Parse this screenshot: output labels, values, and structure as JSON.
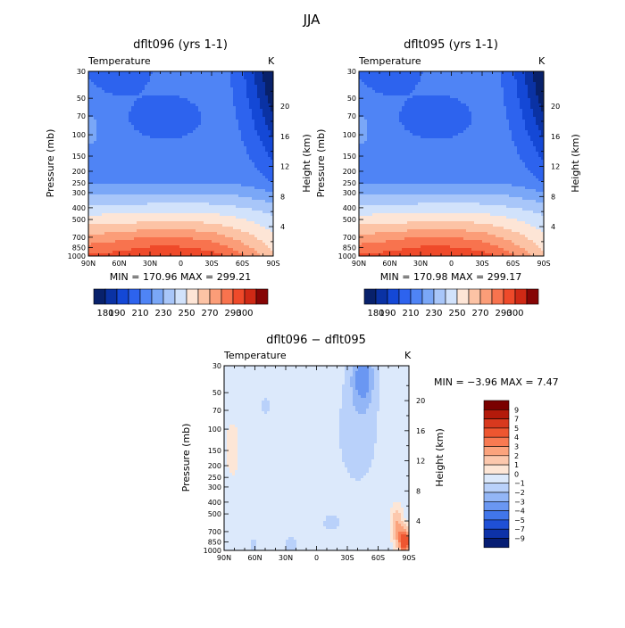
{
  "figure_title": "JJA",
  "levels_main": [
    180,
    190,
    200,
    210,
    220,
    230,
    240,
    250,
    260,
    270,
    280,
    290,
    300
  ],
  "levels_main_labels": [
    "180",
    "190",
    "210",
    "230",
    "250",
    "270",
    "290",
    "300"
  ],
  "colors_main": [
    "#08216b",
    "#0a32a4",
    "#1448d6",
    "#2d63ee",
    "#4f84f5",
    "#7aa7f7",
    "#a8c6f9",
    "#d1e2fb",
    "#fde5d6",
    "#fcc3a5",
    "#fb9d78",
    "#f8734e",
    "#ef4a2a",
    "#cf2915",
    "#860505"
  ],
  "levels_diff_labels": [
    "9",
    "7",
    "5",
    "4",
    "3",
    "2",
    "1",
    "0",
    "−1",
    "−2",
    "−3",
    "−4",
    "−5",
    "−7",
    "−9"
  ],
  "colors_diff": [
    "#7a0000",
    "#b31a0b",
    "#d8391e",
    "#ee5630",
    "#f87a52",
    "#fba37d",
    "#fcc8ad",
    "#fde6d6",
    "#dce9fb",
    "#b9d1fa",
    "#93b6f6",
    "#6a97f2",
    "#4176ea",
    "#1f50d6",
    "#0d32a8",
    "#061d73"
  ],
  "chart_data": [
    {
      "type": "heatmap",
      "title": "dflt096 (yrs 1-1)",
      "left_label": "Temperature",
      "units": "K",
      "ylabel": "Pressure (mb)",
      "y2label": "Height (km)",
      "x_tick_labels": [
        "90N",
        "60N",
        "30N",
        "0",
        "30S",
        "60S",
        "90S"
      ],
      "p_tick_labels": [
        "30",
        "50",
        "70",
        "100",
        "150",
        "200",
        "250",
        "300",
        "400",
        "500",
        "700",
        "850",
        "1000"
      ],
      "z_tick_labels": [
        "20",
        "16",
        "12",
        "8",
        "4"
      ],
      "min_max_text": "MIN = 170.96   MAX = 299.21",
      "min": 170.96,
      "max": 299.21
    },
    {
      "type": "heatmap",
      "title": "dflt095 (yrs 1-1)",
      "left_label": "Temperature",
      "units": "K",
      "ylabel": "Pressure (mb)",
      "y2label": "Height (km)",
      "x_tick_labels": [
        "90N",
        "60N",
        "30N",
        "0",
        "30S",
        "60S",
        "90S"
      ],
      "p_tick_labels": [
        "30",
        "50",
        "70",
        "100",
        "150",
        "200",
        "250",
        "300",
        "400",
        "500",
        "700",
        "850",
        "1000"
      ],
      "z_tick_labels": [
        "20",
        "16",
        "12",
        "8",
        "4"
      ],
      "min_max_text": "MIN = 170.98   MAX = 299.17",
      "min": 170.98,
      "max": 299.17
    },
    {
      "type": "heatmap",
      "title": "dflt096 − dflt095",
      "left_label": "Temperature",
      "units": "K",
      "ylabel": "Pressure (mb)",
      "y2label": "Height (km)",
      "x_tick_labels": [
        "90N",
        "60N",
        "30N",
        "0",
        "30S",
        "60S",
        "90S"
      ],
      "p_tick_labels": [
        "30",
        "50",
        "70",
        "100",
        "150",
        "200",
        "250",
        "300",
        "400",
        "500",
        "700",
        "850",
        "1000"
      ],
      "z_tick_labels": [
        "20",
        "16",
        "12",
        "8",
        "4"
      ],
      "min_max_text": "MIN =   −3.96   MAX =    7.47",
      "min": -3.96,
      "max": 7.47
    }
  ]
}
